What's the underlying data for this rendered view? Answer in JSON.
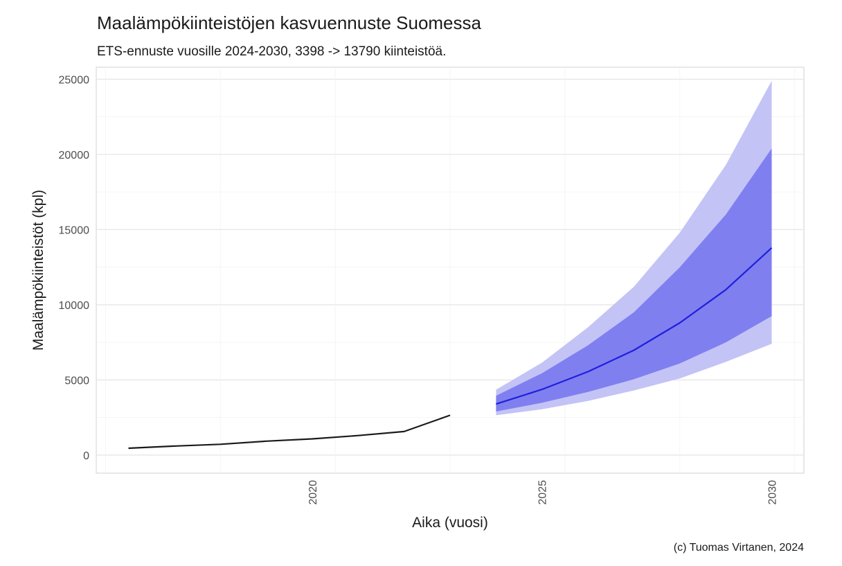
{
  "chart_data": {
    "type": "line",
    "title": "Maalämpökiinteistöjen kasvuennuste Suomessa",
    "subtitle": "ETS-ennuste vuosille 2024-2030, 3398 -> 13790 kiinteistöä.",
    "xlabel": "Aika (vuosi)",
    "ylabel": "Maalämpökiinteistöt (kpl)",
    "caption": "(c) Tuomas Virtanen, 2024",
    "xlim": [
      2015.3,
      2030.7
    ],
    "ylim": [
      -1200,
      25800
    ],
    "x_ticks": [
      "2020",
      "2025",
      "2030"
    ],
    "y_ticks": [
      "0",
      "5000",
      "10000",
      "15000",
      "20000",
      "25000"
    ],
    "grid": true,
    "colors": {
      "history": "#1a1a1a",
      "forecast": "#1f1fdd",
      "band80": "#7f7ff0",
      "band95": "#c3c3f6"
    },
    "history": {
      "x": [
        2016,
        2017,
        2018,
        2019,
        2020,
        2021,
        2022,
        2023
      ],
      "y": [
        460,
        600,
        720,
        930,
        1080,
        1300,
        1570,
        2650
      ]
    },
    "forecast": {
      "x": [
        2024,
        2025,
        2026,
        2027,
        2028,
        2029,
        2030
      ],
      "mean": [
        3398,
        4370,
        5550,
        6980,
        8800,
        11000,
        13790
      ],
      "lo80": [
        2900,
        3480,
        4200,
        5050,
        6100,
        7500,
        9250
      ],
      "hi80": [
        3950,
        5450,
        7300,
        9500,
        12500,
        16000,
        20400
      ],
      "lo95": [
        2650,
        3050,
        3600,
        4300,
        5100,
        6200,
        7400
      ],
      "hi95": [
        4350,
        6150,
        8500,
        11200,
        14800,
        19300,
        24900
      ]
    }
  }
}
